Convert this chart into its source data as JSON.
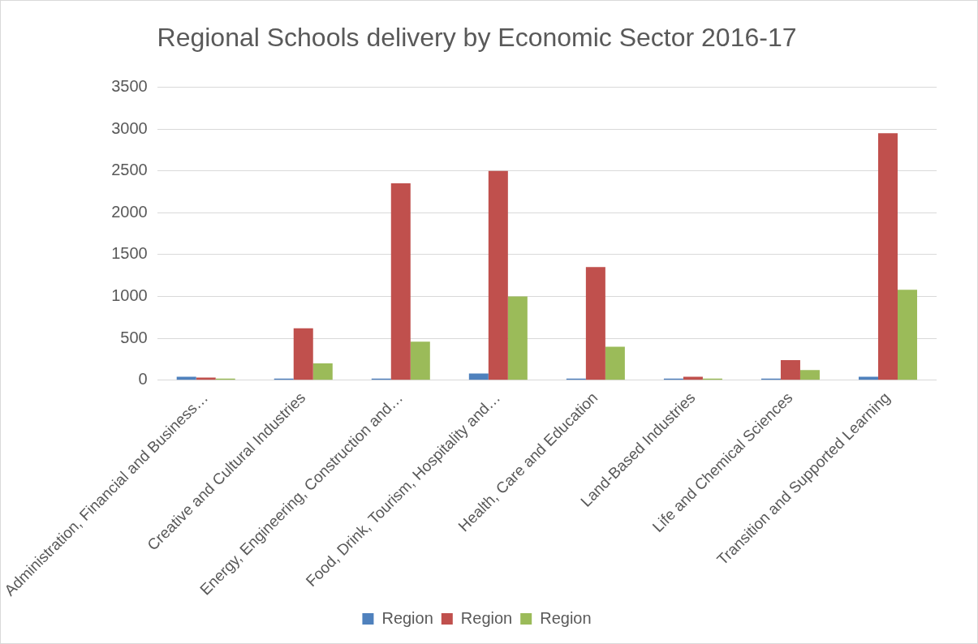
{
  "chart_data": {
    "type": "bar",
    "title": "Regional Schools delivery by Economic Sector 2016-17",
    "categories": [
      "Administration, Financial and Business…",
      "Creative and Cultural Industries",
      "Energy, Engineering, Construction and…",
      "Food, Drink, Tourism, Hospitality and…",
      "Health, Care and Education",
      "Land-Based Industries",
      "Life and Chemical Sciences",
      "Transition and Supported Learning"
    ],
    "series": [
      {
        "name": "Region",
        "color": "#4f81bd",
        "values": [
          40,
          20,
          20,
          80,
          20,
          20,
          20,
          40
        ]
      },
      {
        "name": "Region",
        "color": "#c0504d",
        "values": [
          30,
          620,
          2350,
          2500,
          1350,
          40,
          240,
          2950
        ]
      },
      {
        "name": "Region",
        "color": "#9bbb59",
        "values": [
          20,
          200,
          460,
          1000,
          400,
          20,
          120,
          1080
        ]
      }
    ],
    "ylim": [
      0,
      3500
    ],
    "yticks": [
      0,
      500,
      1000,
      1500,
      2000,
      2500,
      3000,
      3500
    ],
    "grid": "y",
    "legend": "bottom"
  }
}
